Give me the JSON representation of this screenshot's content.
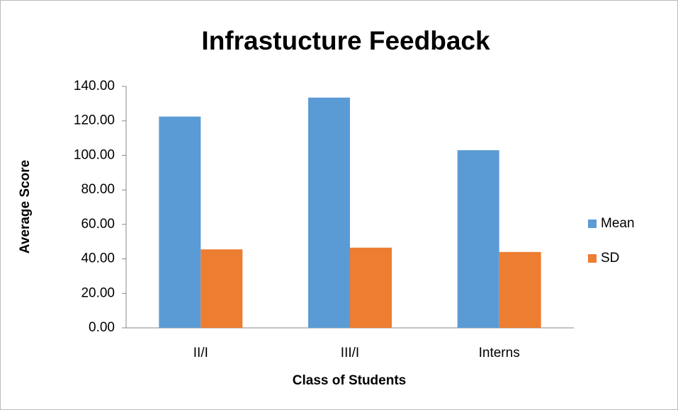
{
  "chart_data": {
    "type": "bar",
    "title": "Infrastucture Feedback",
    "x_label": "Class of Students",
    "y_label": "Average Score",
    "categories": [
      "II/I",
      "III/I",
      "Interns"
    ],
    "series": [
      {
        "name": "Mean",
        "color": "#5b9bd5",
        "values": [
          122.5,
          133.5,
          103.0
        ]
      },
      {
        "name": "SD",
        "color": "#ed7d31",
        "values": [
          45.5,
          46.5,
          44.0
        ]
      }
    ],
    "ylim": [
      0,
      140
    ],
    "yticks": [
      {
        "value": 0,
        "label": "0.00"
      },
      {
        "value": 20,
        "label": "20.00"
      },
      {
        "value": 40,
        "label": "40.00"
      },
      {
        "value": 60,
        "label": "60.00"
      },
      {
        "value": 80,
        "label": "80.00"
      },
      {
        "value": 100,
        "label": "100.00"
      },
      {
        "value": 120,
        "label": "120.00"
      },
      {
        "value": 140,
        "label": "140.00"
      }
    ],
    "grid": false,
    "legend": "right"
  }
}
